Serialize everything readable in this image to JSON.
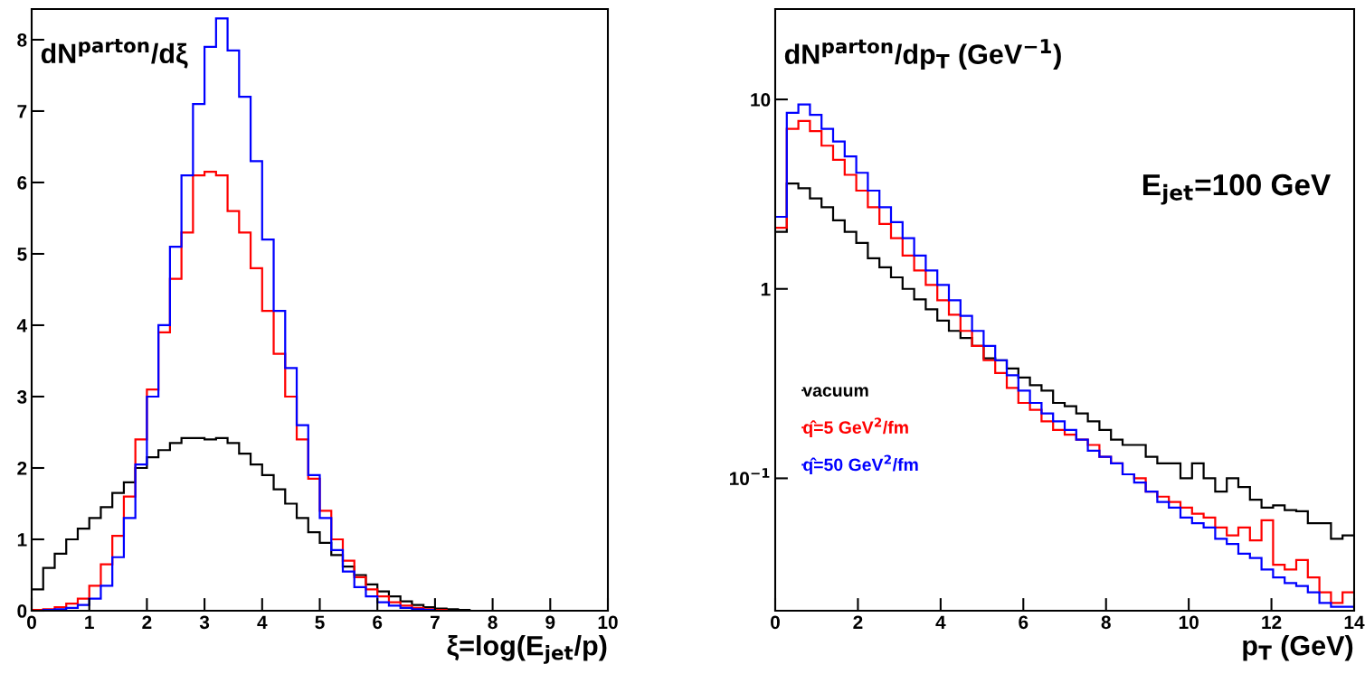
{
  "chart_data": [
    {
      "type": "histogram",
      "ylabel": "dN$^{parton}$/dξ",
      "xlabel": "ξ=log(E$_{jet}$/p)",
      "xlim": [
        0,
        10
      ],
      "ylim": [
        0,
        8.43
      ],
      "xticks": [
        0,
        1,
        2,
        3,
        4,
        5,
        6,
        7,
        8,
        9,
        10
      ],
      "yticks": [
        0,
        1,
        2,
        3,
        4,
        5,
        6,
        7,
        8
      ],
      "grid": false,
      "legend": false,
      "bins": [
        0,
        0.2,
        0.4,
        0.6,
        0.8,
        1.0,
        1.2,
        1.4,
        1.6,
        1.8,
        2.0,
        2.2,
        2.4,
        2.6,
        2.8,
        3.0,
        3.2,
        3.4,
        3.6,
        3.8,
        4.0,
        4.2,
        4.4,
        4.6,
        4.8,
        5.0,
        5.2,
        5.4,
        5.6,
        5.8,
        6.0,
        6.2,
        6.4,
        6.6,
        6.8,
        7.0,
        7.2,
        7.4,
        7.6,
        7.8,
        8.0,
        8.2,
        8.4,
        8.6,
        8.8,
        9.0,
        9.2,
        9.4,
        9.6,
        9.8,
        10.0
      ],
      "series": [
        {
          "color": "#000000",
          "values": [
            0.3,
            0.6,
            0.8,
            1.0,
            1.15,
            1.3,
            1.45,
            1.65,
            1.8,
            2.0,
            2.15,
            2.25,
            2.35,
            2.42,
            2.42,
            2.4,
            2.42,
            2.35,
            2.2,
            2.05,
            1.9,
            1.7,
            1.5,
            1.3,
            1.1,
            0.95,
            0.78,
            0.62,
            0.5,
            0.37,
            0.27,
            0.2,
            0.13,
            0.08,
            0.05,
            0.03,
            0.02,
            0.01,
            0,
            0,
            0,
            0,
            0,
            0,
            0,
            0,
            0,
            0,
            0,
            0
          ]
        },
        {
          "color": "#ff0000",
          "values": [
            0.01,
            0.02,
            0.05,
            0.1,
            0.17,
            0.35,
            0.65,
            1.05,
            1.6,
            2.4,
            3.1,
            3.9,
            4.65,
            5.3,
            6.1,
            6.15,
            6.1,
            5.6,
            5.3,
            4.8,
            4.2,
            3.6,
            3.0,
            2.4,
            1.85,
            1.4,
            1.0,
            0.7,
            0.47,
            0.3,
            0.2,
            0.12,
            0.07,
            0.04,
            0.02,
            0.01,
            0,
            0,
            0,
            0,
            0,
            0,
            0,
            0,
            0,
            0,
            0,
            0,
            0,
            0
          ]
        },
        {
          "color": "#0000ff",
          "values": [
            0,
            0.01,
            0.02,
            0.04,
            0.08,
            0.17,
            0.35,
            0.75,
            1.3,
            2.05,
            3.0,
            4.0,
            5.1,
            6.1,
            7.1,
            7.9,
            8.3,
            7.85,
            7.2,
            6.3,
            5.2,
            4.2,
            3.4,
            2.6,
            1.9,
            1.3,
            0.85,
            0.55,
            0.33,
            0.2,
            0.12,
            0.07,
            0.04,
            0.02,
            0.01,
            0,
            0,
            0,
            0,
            0,
            0,
            0,
            0,
            0,
            0,
            0,
            0,
            0,
            0,
            0
          ]
        }
      ]
    },
    {
      "type": "histogram",
      "ylabel": "dN$^{parton}$/dp$_{T}$ (GeV$^{−1}$)",
      "xlabel": "p$_{T}$ (GeV)",
      "annotations": [
        "E$_{jet}$=100 GeV"
      ],
      "log": "y",
      "xlim": [
        0,
        14
      ],
      "ylim": [
        0.02,
        30
      ],
      "xticks": [
        0,
        2,
        4,
        6,
        8,
        10,
        12,
        14
      ],
      "yticks": [
        {
          "value": 0.1,
          "label": "10$^{−1}$"
        },
        1,
        10
      ],
      "grid": false,
      "legend": "left",
      "bins": [
        0,
        0.28,
        0.56,
        0.84,
        1.12,
        1.4,
        1.68,
        1.96,
        2.24,
        2.52,
        2.8,
        3.08,
        3.36,
        3.64,
        3.92,
        4.2,
        4.48,
        4.76,
        5.04,
        5.32,
        5.6,
        5.88,
        6.16,
        6.44,
        6.72,
        7.0,
        7.28,
        7.56,
        7.84,
        8.12,
        8.4,
        8.68,
        8.96,
        9.24,
        9.52,
        9.8,
        10.08,
        10.36,
        10.64,
        10.92,
        11.2,
        11.48,
        11.76,
        12.04,
        12.32,
        12.6,
        12.88,
        13.16,
        13.44,
        13.72,
        14.0
      ],
      "series": [
        {
          "name": "vacuum",
          "color": "#000000",
          "values": [
            2,
            3.6,
            3.4,
            3.0,
            2.7,
            2.3,
            2.0,
            1.75,
            1.45,
            1.3,
            1.15,
            1.0,
            0.88,
            0.78,
            0.68,
            0.6,
            0.55,
            0.5,
            0.43,
            0.42,
            0.38,
            0.34,
            0.31,
            0.29,
            0.25,
            0.24,
            0.22,
            0.2,
            0.18,
            0.16,
            0.15,
            0.15,
            0.13,
            0.12,
            0.12,
            0.1,
            0.12,
            0.1,
            0.085,
            0.1,
            0.09,
            0.077,
            0.07,
            0.072,
            0.068,
            0.067,
            0.058,
            0.058,
            0.048,
            0.05
          ]
        },
        {
          "name": "q̂=5 GeV$^{2}$/fm",
          "color": "#ff0000",
          "values": [
            2.1,
            7.0,
            7.7,
            6.8,
            5.7,
            4.8,
            4.0,
            3.3,
            2.7,
            2.2,
            1.85,
            1.5,
            1.25,
            1.05,
            0.87,
            0.73,
            0.6,
            0.5,
            0.42,
            0.36,
            0.3,
            0.25,
            0.23,
            0.2,
            0.18,
            0.17,
            0.16,
            0.15,
            0.13,
            0.12,
            0.105,
            0.1,
            0.085,
            0.08,
            0.075,
            0.07,
            0.065,
            0.062,
            0.055,
            0.05,
            0.055,
            0.047,
            0.06,
            0.035,
            0.033,
            0.037,
            0.03,
            0.025,
            0.022,
            0.025
          ]
        },
        {
          "name": "q̂=50 GeV$^{2}$/fm",
          "color": "#0000ff",
          "values": [
            2.4,
            8.5,
            9.4,
            8.3,
            7.0,
            6.0,
            5.0,
            4.1,
            3.3,
            2.7,
            2.25,
            1.85,
            1.5,
            1.25,
            1.05,
            0.87,
            0.72,
            0.6,
            0.5,
            0.42,
            0.35,
            0.29,
            0.25,
            0.22,
            0.2,
            0.18,
            0.16,
            0.14,
            0.13,
            0.12,
            0.105,
            0.095,
            0.085,
            0.075,
            0.07,
            0.062,
            0.058,
            0.055,
            0.048,
            0.045,
            0.04,
            0.038,
            0.033,
            0.03,
            0.028,
            0.027,
            0.025,
            0.022,
            0.021,
            0.021
          ]
        }
      ]
    }
  ]
}
